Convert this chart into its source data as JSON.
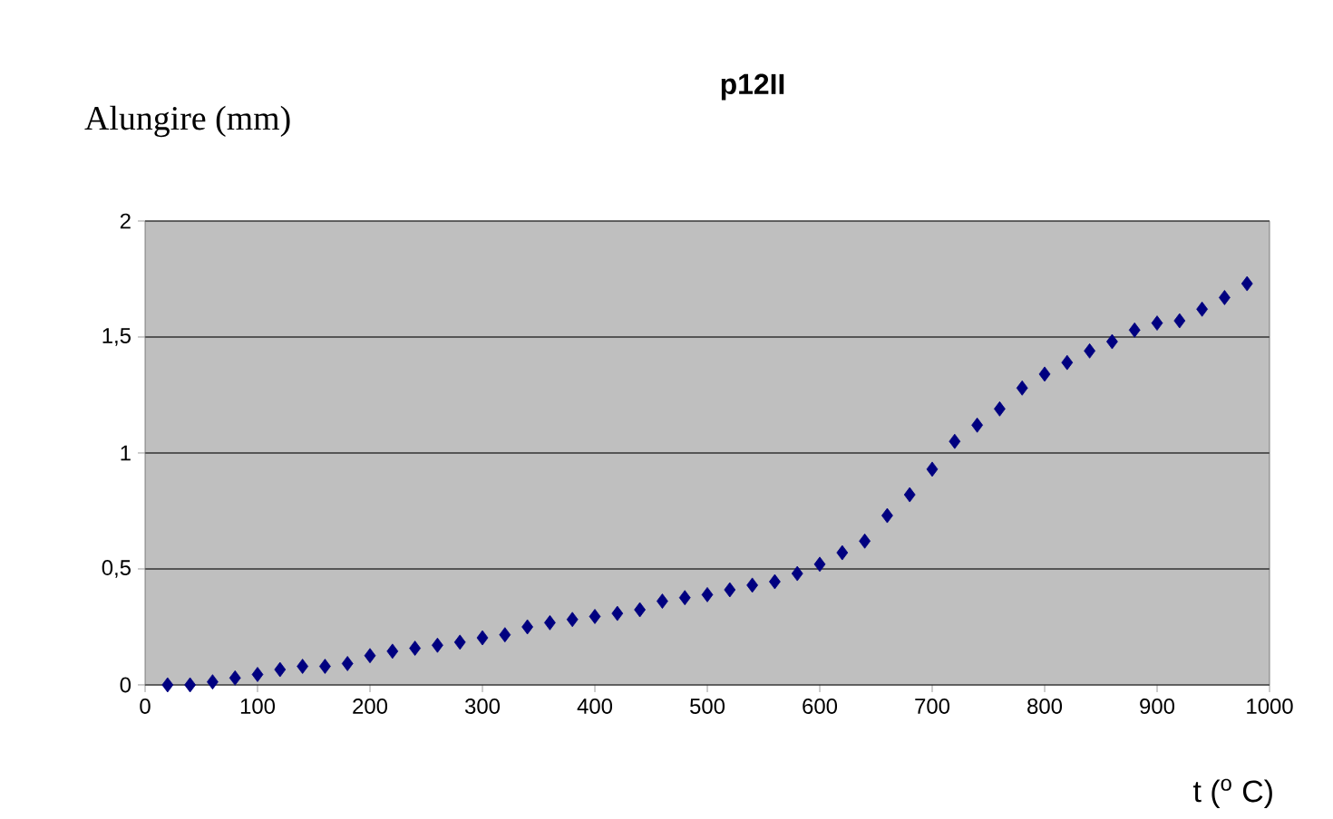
{
  "chart_data": {
    "type": "scatter",
    "title": "p12II",
    "xlabel": "t  ($^{o}$ C)",
    "ylabel": "Alungire (mm)",
    "x": [
      20,
      40,
      60,
      80,
      100,
      120,
      140,
      160,
      180,
      200,
      220,
      240,
      260,
      280,
      300,
      320,
      340,
      360,
      380,
      400,
      420,
      440,
      460,
      480,
      500,
      520,
      540,
      560,
      580,
      600,
      620,
      640,
      660,
      680,
      700,
      720,
      740,
      760,
      780,
      800,
      820,
      840,
      860,
      880,
      900,
      920,
      940,
      960,
      980
    ],
    "series": [
      {
        "color": "#000080",
        "values": [
          0,
          0,
          0.013,
          0.03,
          0.045,
          0.066,
          0.08,
          0.08,
          0.092,
          0.126,
          0.145,
          0.158,
          0.171,
          0.184,
          0.203,
          0.216,
          0.25,
          0.268,
          0.282,
          0.295,
          0.308,
          0.324,
          0.361,
          0.376,
          0.389,
          0.41,
          0.43,
          0.445,
          0.48,
          0.52,
          0.57,
          0.62,
          0.73,
          0.82,
          0.93,
          1.05,
          1.12,
          1.19,
          1.28,
          1.34,
          1.39,
          1.44,
          1.48,
          1.53,
          1.56,
          1.57,
          1.62,
          1.67,
          1.73
        ]
      }
    ],
    "xlim": [
      0,
      1000
    ],
    "xticks": [
      0,
      100,
      200,
      300,
      400,
      500,
      600,
      700,
      800,
      900,
      1000
    ],
    "ylim": [
      0,
      2
    ],
    "yticks": [
      0,
      {
        "value": 0.5,
        "label": "0,5"
      },
      1,
      {
        "value": 1.5,
        "label": "1,5"
      },
      2
    ],
    "grid": "y",
    "marker": "diamond"
  }
}
